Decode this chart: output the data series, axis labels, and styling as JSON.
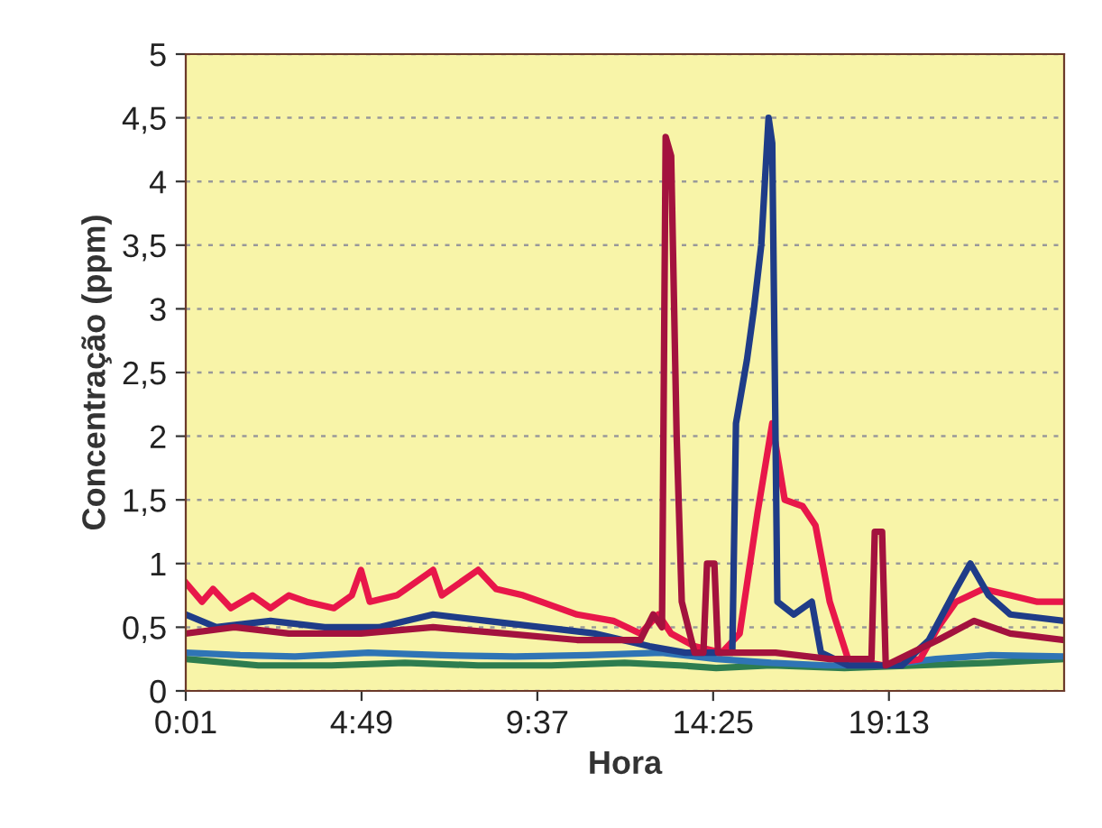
{
  "chart_data": {
    "type": "line",
    "xlabel": "Hora",
    "ylabel": "Concentração (ppm)",
    "grid": "y",
    "line_style": "solid",
    "marker": "none",
    "xlim": [
      0.0167,
      24.0
    ],
    "xticks": [
      {
        "value": 0.0167,
        "label": "0:01"
      },
      {
        "value": 4.8167,
        "label": "4:49"
      },
      {
        "value": 9.6167,
        "label": "9:37"
      },
      {
        "value": 14.4167,
        "label": "14:25"
      },
      {
        "value": 19.2167,
        "label": "19:13"
      }
    ],
    "ylim": [
      0,
      5
    ],
    "yticks": [
      {
        "value": 0,
        "label": "0"
      },
      {
        "value": 0.5,
        "label": "0,5"
      },
      {
        "value": 1,
        "label": "1"
      },
      {
        "value": 1.5,
        "label": "1,5"
      },
      {
        "value": 2,
        "label": "2"
      },
      {
        "value": 2.5,
        "label": "2,5"
      },
      {
        "value": 3,
        "label": "3"
      },
      {
        "value": 3.5,
        "label": "3,5"
      },
      {
        "value": 4,
        "label": "4"
      },
      {
        "value": 4.5,
        "label": "4,5"
      },
      {
        "value": 5,
        "label": "5"
      }
    ],
    "series": [
      {
        "color": "#2e7d4f",
        "x": [
          0.0167,
          2.0,
          4.0,
          6.0,
          8.0,
          10.0,
          12.0,
          13.5,
          14.5,
          16.0,
          18.0,
          20.0,
          22.0,
          24.0
        ],
        "values": [
          0.25,
          0.2,
          0.2,
          0.22,
          0.2,
          0.2,
          0.22,
          0.2,
          0.18,
          0.2,
          0.18,
          0.2,
          0.22,
          0.25
        ]
      },
      {
        "color": "#2f74b5",
        "x": [
          0.0167,
          1.5,
          3.0,
          5.0,
          7.0,
          9.0,
          11.0,
          13.0,
          14.5,
          16.0,
          17.5,
          19.0,
          20.5,
          22.0,
          24.0
        ],
        "values": [
          0.3,
          0.28,
          0.27,
          0.3,
          0.28,
          0.27,
          0.28,
          0.3,
          0.25,
          0.22,
          0.2,
          0.2,
          0.25,
          0.28,
          0.27
        ]
      },
      {
        "color": "#e8174a",
        "x": [
          0.0167,
          0.46,
          0.76,
          1.25,
          1.84,
          2.33,
          2.83,
          3.32,
          4.06,
          4.55,
          4.8,
          5.04,
          5.78,
          6.77,
          7.01,
          8.0,
          8.49,
          9.23,
          9.72,
          10.7,
          11.69,
          12.43,
          12.92,
          13.27,
          13.91,
          14.65,
          15.14,
          15.63,
          16.03,
          16.37,
          16.86,
          17.21,
          17.6,
          18.1,
          19.08,
          20.07,
          20.56,
          21.05,
          21.79,
          22.53,
          23.27,
          24.0
        ],
        "values": [
          0.85,
          0.7,
          0.8,
          0.65,
          0.75,
          0.65,
          0.75,
          0.7,
          0.65,
          0.75,
          0.95,
          0.7,
          0.75,
          0.95,
          0.75,
          0.95,
          0.8,
          0.75,
          0.7,
          0.6,
          0.55,
          0.45,
          0.6,
          0.45,
          0.35,
          0.3,
          0.45,
          1.4,
          2.1,
          1.5,
          1.45,
          1.3,
          0.7,
          0.25,
          0.2,
          0.25,
          0.5,
          0.7,
          0.8,
          0.75,
          0.7,
          0.7
        ]
      },
      {
        "color": "#1f3c88",
        "x": [
          0.0167,
          0.85,
          2.33,
          3.81,
          5.29,
          6.77,
          8.24,
          9.72,
          11.2,
          12.68,
          13.66,
          14.65,
          14.94,
          15.04,
          15.34,
          15.53,
          15.73,
          15.93,
          16.03,
          16.17,
          16.62,
          17.11,
          17.36,
          18.1,
          19.57,
          20.31,
          21.05,
          21.44,
          21.94,
          22.53,
          24.0
        ],
        "values": [
          0.6,
          0.5,
          0.55,
          0.5,
          0.5,
          0.6,
          0.55,
          0.5,
          0.45,
          0.35,
          0.3,
          0.3,
          0.3,
          2.1,
          2.6,
          3.0,
          3.5,
          4.5,
          4.3,
          0.7,
          0.6,
          0.7,
          0.3,
          0.2,
          0.2,
          0.4,
          0.8,
          1.0,
          0.75,
          0.6,
          0.55
        ]
      },
      {
        "color": "#a3123e",
        "x": [
          0.0167,
          1.35,
          2.83,
          4.8,
          6.77,
          8.74,
          10.7,
          12.43,
          12.78,
          13.02,
          13.12,
          13.27,
          13.42,
          13.56,
          13.91,
          14.15,
          14.25,
          14.45,
          14.55,
          16.12,
          17.6,
          18.74,
          18.83,
          19.03,
          19.13,
          20.56,
          21.54,
          22.53,
          24.0
        ],
        "values": [
          0.45,
          0.5,
          0.45,
          0.45,
          0.5,
          0.45,
          0.4,
          0.4,
          0.6,
          0.5,
          4.35,
          4.2,
          2.0,
          0.7,
          0.3,
          0.3,
          1.0,
          1.0,
          0.3,
          0.3,
          0.25,
          0.25,
          1.25,
          1.25,
          0.2,
          0.4,
          0.55,
          0.45,
          0.4
        ]
      }
    ]
  }
}
